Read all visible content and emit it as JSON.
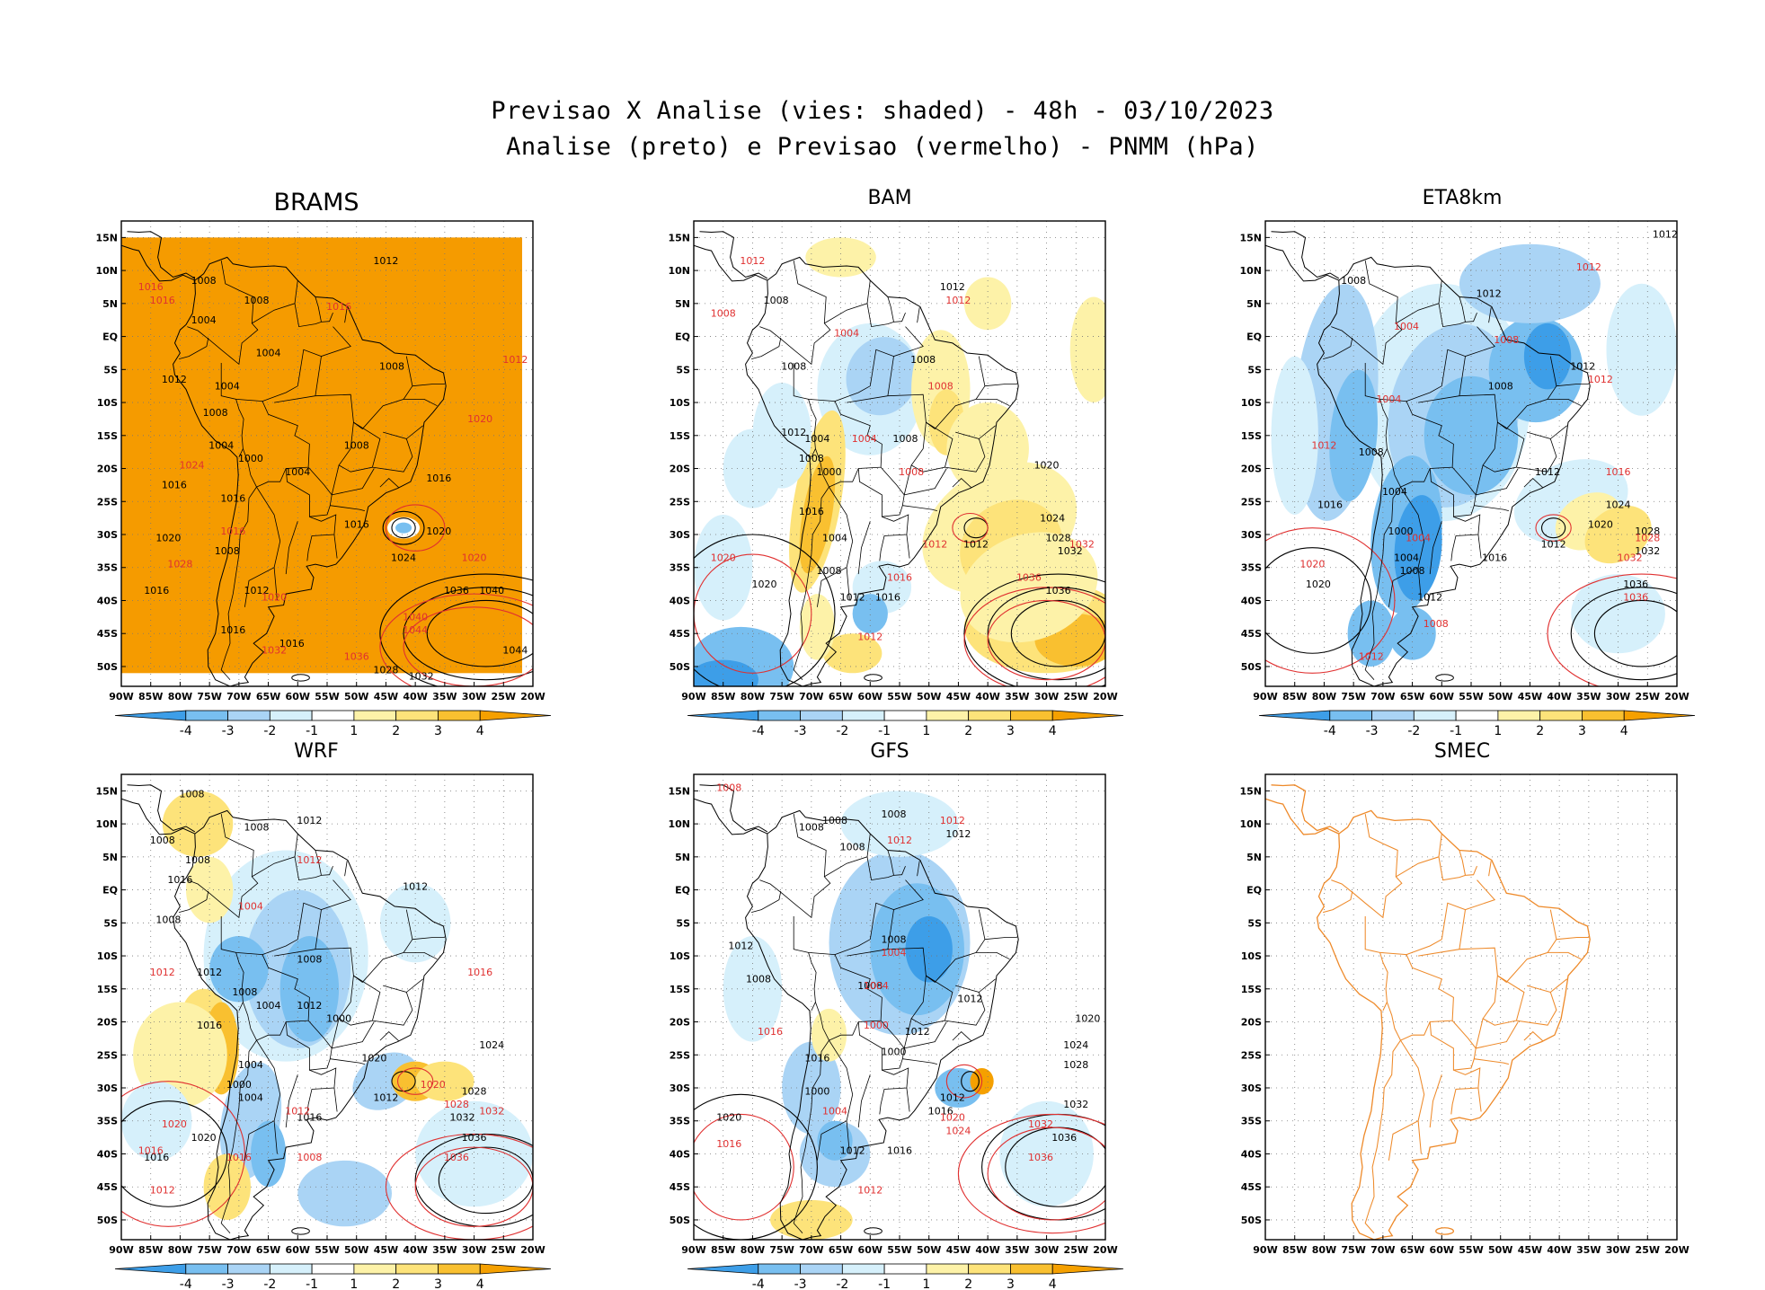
{
  "header": {
    "line1": "Previsao X Analise (vies: shaded) - 48h - 03/10/2023",
    "line2": "Analise (preto) e Previsao (vermelho) - PNMM (hPa)"
  },
  "axes": {
    "lat_labels": [
      "15N",
      "10N",
      "5N",
      "EQ",
      "5S",
      "10S",
      "15S",
      "20S",
      "25S",
      "30S",
      "35S",
      "40S",
      "45S",
      "50S"
    ],
    "lon_labels": [
      "90W",
      "85W",
      "80W",
      "75W",
      "70W",
      "65W",
      "60W",
      "55W",
      "50W",
      "45W",
      "40W",
      "35W",
      "30W",
      "25W",
      "20W"
    ]
  },
  "colorbar": {
    "labels": [
      "-4",
      "-3",
      "-2",
      "-1",
      "1",
      "2",
      "3",
      "4"
    ],
    "colors": [
      "#3d9ee8",
      "#78bff0",
      "#aad4f5",
      "#d6f0fb",
      "#ffffff",
      "#fdf2a8",
      "#fde37a",
      "#f9c030",
      "#f5a000"
    ]
  },
  "style": {
    "analysis_color": "#000000",
    "forecast_color": "#e03030",
    "smec_color": "#ee8a2a"
  },
  "panels": [
    {
      "name": "BRAMS",
      "mode": "orange",
      "isobars_black": [
        {
          "v": "1012",
          "lon": -45,
          "lat": 11
        },
        {
          "v": "1008",
          "lon": -76,
          "lat": 8
        },
        {
          "v": "1008",
          "lon": -67,
          "lat": 5
        },
        {
          "v": "1004",
          "lon": -76,
          "lat": 2
        },
        {
          "v": "1004",
          "lon": -65,
          "lat": -3
        },
        {
          "v": "1008",
          "lon": -44,
          "lat": -5
        },
        {
          "v": "1012",
          "lon": -81,
          "lat": -7
        },
        {
          "v": "1004",
          "lon": -72,
          "lat": -8
        },
        {
          "v": "1008",
          "lon": -74,
          "lat": -12
        },
        {
          "v": "1004",
          "lon": -73,
          "lat": -17
        },
        {
          "v": "1000",
          "lon": -68,
          "lat": -19
        },
        {
          "v": "1008",
          "lon": -50,
          "lat": -17
        },
        {
          "v": "1004",
          "lon": -60,
          "lat": -21
        },
        {
          "v": "1016",
          "lon": -36,
          "lat": -22
        },
        {
          "v": "1016",
          "lon": -81,
          "lat": -23
        },
        {
          "v": "1016",
          "lon": -71,
          "lat": -25
        },
        {
          "v": "1016",
          "lon": -50,
          "lat": -29
        },
        {
          "v": "1020",
          "lon": -36,
          "lat": -30
        },
        {
          "v": "1020",
          "lon": -82,
          "lat": -31
        },
        {
          "v": "1008",
          "lon": -72,
          "lat": -33
        },
        {
          "v": "1024",
          "lon": -42,
          "lat": -34
        },
        {
          "v": "1016",
          "lon": -84,
          "lat": -39
        },
        {
          "v": "1012",
          "lon": -67,
          "lat": -39
        },
        {
          "v": "1036",
          "lon": -33,
          "lat": -39
        },
        {
          "v": "1040",
          "lon": -27,
          "lat": -39
        },
        {
          "v": "1016",
          "lon": -71,
          "lat": -45
        },
        {
          "v": "1016",
          "lon": -61,
          "lat": -47
        },
        {
          "v": "1044",
          "lon": -23,
          "lat": -48
        },
        {
          "v": "1028",
          "lon": -45,
          "lat": -51
        },
        {
          "v": "1032",
          "lon": -39,
          "lat": -52
        }
      ],
      "isobars_red": [
        {
          "v": "1016",
          "lon": -85,
          "lat": 7
        },
        {
          "v": "1016",
          "lon": -83,
          "lat": 5
        },
        {
          "v": "1016",
          "lon": -53,
          "lat": 4
        },
        {
          "v": "1012",
          "lon": -23,
          "lat": -4
        },
        {
          "v": "1020",
          "lon": -29,
          "lat": -13
        },
        {
          "v": "1024",
          "lon": -78,
          "lat": -20
        },
        {
          "v": "1016",
          "lon": -71,
          "lat": -30
        },
        {
          "v": "1020",
          "lon": -30,
          "lat": -34
        },
        {
          "v": "1028",
          "lon": -80,
          "lat": -35
        },
        {
          "v": "1020",
          "lon": -64,
          "lat": -40
        },
        {
          "v": "1040",
          "lon": -40,
          "lat": -43
        },
        {
          "v": "1044",
          "lon": -40,
          "lat": -45
        },
        {
          "v": "1036",
          "lon": -50,
          "lat": -49
        },
        {
          "v": "1032",
          "lon": -64,
          "lat": -48
        }
      ]
    },
    {
      "name": "BAM",
      "mode": "bias",
      "isobars_black": [
        {
          "v": "1012",
          "lon": -46,
          "lat": 7
        },
        {
          "v": "1008",
          "lon": -76,
          "lat": 5
        },
        {
          "v": "1008",
          "lon": -73,
          "lat": -5
        },
        {
          "v": "1008",
          "lon": -51,
          "lat": -4
        },
        {
          "v": "1012",
          "lon": -73,
          "lat": -15
        },
        {
          "v": "1004",
          "lon": -69,
          "lat": -16
        },
        {
          "v": "1008",
          "lon": -54,
          "lat": -16
        },
        {
          "v": "1008",
          "lon": -70,
          "lat": -19
        },
        {
          "v": "1000",
          "lon": -67,
          "lat": -21
        },
        {
          "v": "1020",
          "lon": -30,
          "lat": -20
        },
        {
          "v": "1016",
          "lon": -70,
          "lat": -27
        },
        {
          "v": "1004",
          "lon": -66,
          "lat": -31
        },
        {
          "v": "1012",
          "lon": -42,
          "lat": -32
        },
        {
          "v": "1024",
          "lon": -29,
          "lat": -28
        },
        {
          "v": "1028",
          "lon": -28,
          "lat": -31
        },
        {
          "v": "1032",
          "lon": -26,
          "lat": -33
        },
        {
          "v": "1008",
          "lon": -67,
          "lat": -36
        },
        {
          "v": "1020",
          "lon": -78,
          "lat": -38
        },
        {
          "v": "1012",
          "lon": -63,
          "lat": -40
        },
        {
          "v": "1016",
          "lon": -57,
          "lat": -40
        },
        {
          "v": "1036",
          "lon": -28,
          "lat": -39
        }
      ],
      "isobars_red": [
        {
          "v": "1012",
          "lon": -80,
          "lat": 11
        },
        {
          "v": "1008",
          "lon": -85,
          "lat": 3
        },
        {
          "v": "1004",
          "lon": -64,
          "lat": 0
        },
        {
          "v": "1012",
          "lon": -45,
          "lat": 5
        },
        {
          "v": "1008",
          "lon": -48,
          "lat": -8
        },
        {
          "v": "1004",
          "lon": -61,
          "lat": -16
        },
        {
          "v": "1008",
          "lon": -53,
          "lat": -21
        },
        {
          "v": "1012",
          "lon": -49,
          "lat": -32
        },
        {
          "v": "1020",
          "lon": -85,
          "lat": -34
        },
        {
          "v": "1016",
          "lon": -55,
          "lat": -37
        },
        {
          "v": "1036",
          "lon": -33,
          "lat": -37
        },
        {
          "v": "1012",
          "lon": -60,
          "lat": -46
        },
        {
          "v": "1032",
          "lon": -24,
          "lat": -32
        }
      ]
    },
    {
      "name": "ETA8km",
      "mode": "bias",
      "isobars_black": [
        {
          "v": "1012",
          "lon": -22,
          "lat": 15
        },
        {
          "v": "1008",
          "lon": -75,
          "lat": 8
        },
        {
          "v": "1012",
          "lon": -52,
          "lat": 6
        },
        {
          "v": "1012",
          "lon": -36,
          "lat": -5
        },
        {
          "v": "1008",
          "lon": -50,
          "lat": -8
        },
        {
          "v": "1008",
          "lon": -72,
          "lat": -18
        },
        {
          "v": "1012",
          "lon": -42,
          "lat": -21
        },
        {
          "v": "1004",
          "lon": -68,
          "lat": -24
        },
        {
          "v": "1016",
          "lon": -79,
          "lat": -26
        },
        {
          "v": "1024",
          "lon": -30,
          "lat": -26
        },
        {
          "v": "1020",
          "lon": -33,
          "lat": -29
        },
        {
          "v": "1028",
          "lon": -25,
          "lat": -30
        },
        {
          "v": "1000",
          "lon": -67,
          "lat": -30
        },
        {
          "v": "1004",
          "lon": -66,
          "lat": -34
        },
        {
          "v": "1012",
          "lon": -41,
          "lat": -32
        },
        {
          "v": "1016",
          "lon": -51,
          "lat": -34
        },
        {
          "v": "1008",
          "lon": -65,
          "lat": -36
        },
        {
          "v": "1032",
          "lon": -25,
          "lat": -33
        },
        {
          "v": "1020",
          "lon": -81,
          "lat": -38
        },
        {
          "v": "1012",
          "lon": -62,
          "lat": -40
        },
        {
          "v": "1036",
          "lon": -27,
          "lat": -38
        }
      ],
      "isobars_red": [
        {
          "v": "1012",
          "lon": -35,
          "lat": 10
        },
        {
          "v": "1004",
          "lon": -66,
          "lat": 1
        },
        {
          "v": "1008",
          "lon": -49,
          "lat": -1
        },
        {
          "v": "1012",
          "lon": -33,
          "lat": -7
        },
        {
          "v": "1004",
          "lon": -69,
          "lat": -10
        },
        {
          "v": "1012",
          "lon": -80,
          "lat": -17
        },
        {
          "v": "1016",
          "lon": -30,
          "lat": -21
        },
        {
          "v": "1020",
          "lon": -82,
          "lat": -35
        },
        {
          "v": "1004",
          "lon": -64,
          "lat": -31
        },
        {
          "v": "1028",
          "lon": -25,
          "lat": -31
        },
        {
          "v": "1032",
          "lon": -28,
          "lat": -34
        },
        {
          "v": "1036",
          "lon": -27,
          "lat": -40
        },
        {
          "v": "1008",
          "lon": -61,
          "lat": -44
        },
        {
          "v": "1012",
          "lon": -72,
          "lat": -49
        }
      ]
    },
    {
      "name": "WRF",
      "mode": "bias",
      "isobars_black": [
        {
          "v": "1008",
          "lon": -78,
          "lat": 14
        },
        {
          "v": "1008",
          "lon": -67,
          "lat": 9
        },
        {
          "v": "1012",
          "lon": -58,
          "lat": 10
        },
        {
          "v": "1008",
          "lon": -83,
          "lat": 7
        },
        {
          "v": "1008",
          "lon": -77,
          "lat": 4
        },
        {
          "v": "1016",
          "lon": -80,
          "lat": 1
        },
        {
          "v": "1012",
          "lon": -40,
          "lat": 0
        },
        {
          "v": "1008",
          "lon": -82,
          "lat": -5
        },
        {
          "v": "1008",
          "lon": -58,
          "lat": -11
        },
        {
          "v": "1012",
          "lon": -75,
          "lat": -13
        },
        {
          "v": "1008",
          "lon": -69,
          "lat": -16
        },
        {
          "v": "1004",
          "lon": -65,
          "lat": -18
        },
        {
          "v": "1012",
          "lon": -58,
          "lat": -18
        },
        {
          "v": "1000",
          "lon": -53,
          "lat": -20
        },
        {
          "v": "1016",
          "lon": -75,
          "lat": -21
        },
        {
          "v": "1020",
          "lon": -47,
          "lat": -26
        },
        {
          "v": "1024",
          "lon": -27,
          "lat": -24
        },
        {
          "v": "1004",
          "lon": -68,
          "lat": -27
        },
        {
          "v": "1000",
          "lon": -70,
          "lat": -30
        },
        {
          "v": "1004",
          "lon": -68,
          "lat": -32
        },
        {
          "v": "1012",
          "lon": -45,
          "lat": -32
        },
        {
          "v": "1028",
          "lon": -30,
          "lat": -31
        },
        {
          "v": "1032",
          "lon": -32,
          "lat": -35
        },
        {
          "v": "1020",
          "lon": -76,
          "lat": -38
        },
        {
          "v": "1016",
          "lon": -58,
          "lat": -35
        },
        {
          "v": "1036",
          "lon": -30,
          "lat": -38
        },
        {
          "v": "1016",
          "lon": -84,
          "lat": -41
        }
      ],
      "isobars_red": [
        {
          "v": "1012",
          "lon": -58,
          "lat": 4
        },
        {
          "v": "1004",
          "lon": -68,
          "lat": -3
        },
        {
          "v": "1012",
          "lon": -83,
          "lat": -13
        },
        {
          "v": "1016",
          "lon": -29,
          "lat": -13
        },
        {
          "v": "1016",
          "lon": -85,
          "lat": -40
        },
        {
          "v": "1020",
          "lon": -81,
          "lat": -36
        },
        {
          "v": "1012",
          "lon": -83,
          "lat": -46
        },
        {
          "v": "1012",
          "lon": -60,
          "lat": -34
        },
        {
          "v": "1008",
          "lon": -58,
          "lat": -41
        },
        {
          "v": "1016",
          "lon": -70,
          "lat": -41
        },
        {
          "v": "1020",
          "lon": -37,
          "lat": -30
        },
        {
          "v": "1028",
          "lon": -33,
          "lat": -33
        },
        {
          "v": "1032",
          "lon": -27,
          "lat": -34
        },
        {
          "v": "1036",
          "lon": -33,
          "lat": -41
        }
      ]
    },
    {
      "name": "GFS",
      "mode": "bias",
      "isobars_black": [
        {
          "v": "1008",
          "lon": -70,
          "lat": 9
        },
        {
          "v": "1008",
          "lon": -63,
          "lat": 6
        },
        {
          "v": "1008",
          "lon": -66,
          "lat": 10
        },
        {
          "v": "1008",
          "lon": -56,
          "lat": 11
        },
        {
          "v": "1012",
          "lon": -45,
          "lat": 8
        },
        {
          "v": "1012",
          "lon": -82,
          "lat": -9
        },
        {
          "v": "1008",
          "lon": -79,
          "lat": -14
        },
        {
          "v": "1008",
          "lon": -56,
          "lat": -8
        },
        {
          "v": "1008",
          "lon": -60,
          "lat": -15
        },
        {
          "v": "1012",
          "lon": -43,
          "lat": -17
        },
        {
          "v": "1012",
          "lon": -52,
          "lat": -22
        },
        {
          "v": "1000",
          "lon": -56,
          "lat": -25
        },
        {
          "v": "1016",
          "lon": -69,
          "lat": -26
        },
        {
          "v": "1020",
          "lon": -23,
          "lat": -20
        },
        {
          "v": "1024",
          "lon": -25,
          "lat": -24
        },
        {
          "v": "1028",
          "lon": -25,
          "lat": -27
        },
        {
          "v": "1000",
          "lon": -69,
          "lat": -31
        },
        {
          "v": "1012",
          "lon": -46,
          "lat": -32
        },
        {
          "v": "1016",
          "lon": -48,
          "lat": -34
        },
        {
          "v": "1032",
          "lon": -25,
          "lat": -33
        },
        {
          "v": "1020",
          "lon": -84,
          "lat": -35
        },
        {
          "v": "1036",
          "lon": -27,
          "lat": -38
        },
        {
          "v": "1012",
          "lon": -63,
          "lat": -40
        },
        {
          "v": "1016",
          "lon": -55,
          "lat": -40
        }
      ],
      "isobars_red": [
        {
          "v": "1008",
          "lon": -84,
          "lat": 15
        },
        {
          "v": "1004",
          "lon": -56,
          "lat": -10
        },
        {
          "v": "1004",
          "lon": -59,
          "lat": -15
        },
        {
          "v": "1012",
          "lon": -55,
          "lat": 7
        },
        {
          "v": "1012",
          "lon": -46,
          "lat": 10
        },
        {
          "v": "1016",
          "lon": -77,
          "lat": -22
        },
        {
          "v": "1000",
          "lon": -59,
          "lat": -21
        },
        {
          "v": "1020",
          "lon": -46,
          "lat": -35
        },
        {
          "v": "1024",
          "lon": -45,
          "lat": -37
        },
        {
          "v": "1016",
          "lon": -84,
          "lat": -39
        },
        {
          "v": "1032",
          "lon": -31,
          "lat": -36
        },
        {
          "v": "1036",
          "lon": -31,
          "lat": -41
        },
        {
          "v": "1004",
          "lon": -66,
          "lat": -34
        },
        {
          "v": "1012",
          "lon": -60,
          "lat": -46
        }
      ]
    },
    {
      "name": "SMEC",
      "mode": "empty",
      "isobars_black": [],
      "isobars_red": []
    }
  ]
}
